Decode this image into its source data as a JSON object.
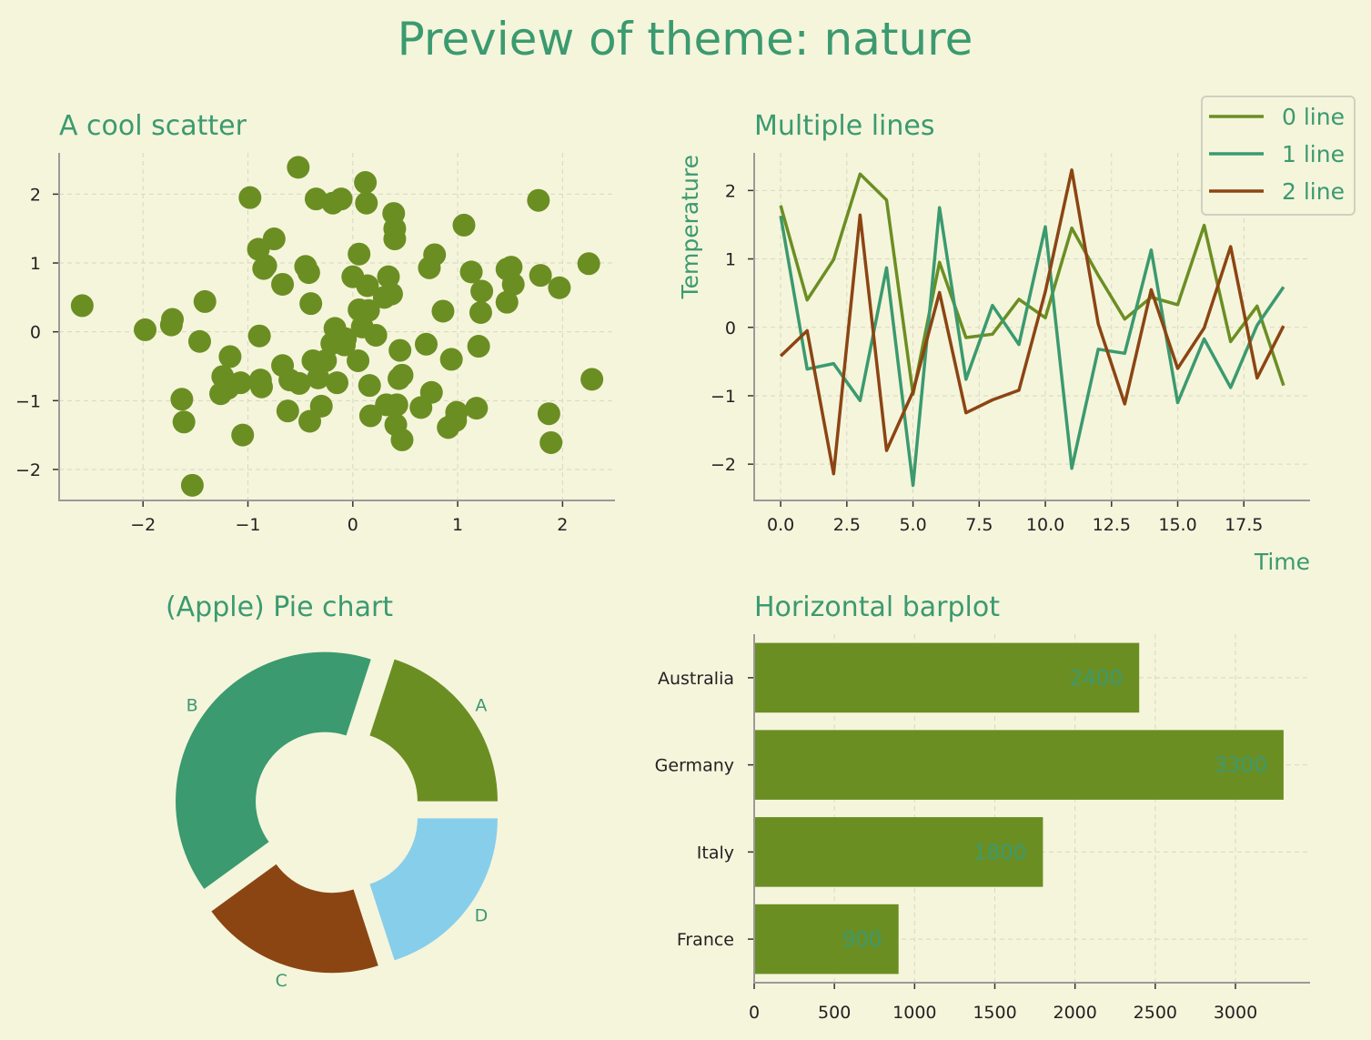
{
  "page": {
    "suptitle": "Preview of theme: nature"
  },
  "colors": {
    "background": "#f5f5dc",
    "text": "#3b9a6f",
    "olive": "#6b8e23",
    "green": "#3b9a6f",
    "brown": "#8b4513",
    "lightblue": "#87ceeb"
  },
  "chart_data": [
    {
      "id": "scatter",
      "type": "scatter",
      "title": "A cool scatter",
      "xlabel": "",
      "ylabel": "",
      "xlim": [
        -2.8,
        2.5
      ],
      "ylim": [
        -2.45,
        2.6
      ],
      "xticks": [
        -2,
        -1,
        0,
        1,
        2
      ],
      "xtick_labels": [
        "−2",
        "−1",
        "0",
        "1",
        "2"
      ],
      "yticks": [
        -2,
        -1,
        0,
        1,
        2
      ],
      "ytick_labels": [
        "−2",
        "−1",
        "0",
        "1",
        "2"
      ],
      "grid": true,
      "color": "#6b8e23",
      "points": [
        [
          -2.58,
          0.38
        ],
        [
          -1.98,
          0.03
        ],
        [
          -1.72,
          0.18
        ],
        [
          -1.73,
          0.1
        ],
        [
          -1.63,
          -0.98
        ],
        [
          -1.61,
          -1.31
        ],
        [
          -1.53,
          -2.23
        ],
        [
          -1.46,
          -0.14
        ],
        [
          -1.41,
          0.44
        ],
        [
          -1.26,
          -0.9
        ],
        [
          -1.24,
          -0.65
        ],
        [
          -1.17,
          -0.36
        ],
        [
          -1.19,
          -0.82
        ],
        [
          -1.07,
          -0.74
        ],
        [
          -1.05,
          -1.5
        ],
        [
          -0.98,
          1.95
        ],
        [
          -0.9,
          1.2
        ],
        [
          -0.89,
          -0.06
        ],
        [
          -0.88,
          -0.7
        ],
        [
          -0.87,
          -0.8
        ],
        [
          -0.83,
          0.96
        ],
        [
          -0.85,
          0.92
        ],
        [
          -0.75,
          1.35
        ],
        [
          -0.67,
          0.69
        ],
        [
          -0.67,
          -0.49
        ],
        [
          -0.62,
          -1.15
        ],
        [
          -0.6,
          -0.7
        ],
        [
          -0.52,
          2.39
        ],
        [
          -0.51,
          -0.75
        ],
        [
          -0.45,
          0.95
        ],
        [
          -0.42,
          0.86
        ],
        [
          -0.4,
          0.41
        ],
        [
          -0.41,
          -1.3
        ],
        [
          -0.38,
          -0.42
        ],
        [
          -0.35,
          1.93
        ],
        [
          -0.33,
          -0.67
        ],
        [
          -0.3,
          -1.08
        ],
        [
          -0.26,
          -0.42
        ],
        [
          -0.2,
          -0.17
        ],
        [
          -0.19,
          1.87
        ],
        [
          -0.17,
          0.05
        ],
        [
          -0.15,
          -0.74
        ],
        [
          -0.11,
          1.93
        ],
        [
          -0.08,
          -0.19
        ],
        [
          -0.07,
          -0.1
        ],
        [
          0.0,
          0.8
        ],
        [
          0.05,
          -0.42
        ],
        [
          0.06,
          1.13
        ],
        [
          0.06,
          0.32
        ],
        [
          0.09,
          0.07
        ],
        [
          0.12,
          2.17
        ],
        [
          0.13,
          1.87
        ],
        [
          0.14,
          0.67
        ],
        [
          0.15,
          0.31
        ],
        [
          0.16,
          -0.78
        ],
        [
          0.17,
          -1.22
        ],
        [
          0.22,
          -0.05
        ],
        [
          0.3,
          0.5
        ],
        [
          0.32,
          -1.06
        ],
        [
          0.34,
          0.8
        ],
        [
          0.37,
          0.55
        ],
        [
          0.39,
          1.72
        ],
        [
          0.4,
          1.5
        ],
        [
          0.4,
          1.35
        ],
        [
          0.41,
          -1.35
        ],
        [
          0.42,
          -1.06
        ],
        [
          0.44,
          -0.68
        ],
        [
          0.45,
          -0.27
        ],
        [
          0.47,
          -0.63
        ],
        [
          0.47,
          -1.57
        ],
        [
          0.65,
          -1.1
        ],
        [
          0.7,
          -0.18
        ],
        [
          0.73,
          0.93
        ],
        [
          0.75,
          -0.88
        ],
        [
          0.78,
          1.12
        ],
        [
          0.86,
          0.3
        ],
        [
          0.91,
          -1.39
        ],
        [
          0.94,
          -0.4
        ],
        [
          0.98,
          -1.29
        ],
        [
          0.99,
          -1.17
        ],
        [
          1.06,
          1.55
        ],
        [
          1.13,
          0.87
        ],
        [
          1.18,
          -1.11
        ],
        [
          1.2,
          -0.21
        ],
        [
          1.23,
          0.59
        ],
        [
          1.22,
          0.28
        ],
        [
          1.47,
          0.91
        ],
        [
          1.47,
          0.43
        ],
        [
          1.51,
          0.94
        ],
        [
          1.53,
          0.69
        ],
        [
          1.77,
          1.91
        ],
        [
          1.79,
          0.82
        ],
        [
          1.87,
          -1.19
        ],
        [
          1.89,
          -1.61
        ],
        [
          1.97,
          0.64
        ],
        [
          2.25,
          0.99
        ],
        [
          2.28,
          -0.69
        ]
      ]
    },
    {
      "id": "lines",
      "type": "line",
      "title": "Multiple lines",
      "xlabel": "Time",
      "ylabel": "Temperature",
      "xlim": [
        -1.0,
        20.0
      ],
      "ylim": [
        -2.53,
        2.55
      ],
      "xticks": [
        0,
        2.5,
        5,
        7.5,
        10,
        12.5,
        15,
        17.5
      ],
      "xtick_labels": [
        "0.0",
        "2.5",
        "5.0",
        "7.5",
        "10.0",
        "12.5",
        "15.0",
        "17.5"
      ],
      "yticks": [
        -2,
        -1,
        0,
        1,
        2
      ],
      "ytick_labels": [
        "−2",
        "−1",
        "0",
        "1",
        "2"
      ],
      "grid": true,
      "legend_position": "top-right",
      "x": [
        0,
        1,
        2,
        3,
        4,
        5,
        6,
        7,
        8,
        9,
        10,
        11,
        12,
        13,
        14,
        15,
        16,
        17,
        18,
        19
      ],
      "series": [
        {
          "name": "0 line",
          "color": "#6b8e23",
          "values": [
            1.78,
            0.4,
            0.99,
            2.24,
            1.86,
            -0.98,
            0.95,
            -0.15,
            -0.1,
            0.41,
            0.14,
            1.45,
            0.76,
            0.12,
            0.44,
            0.33,
            1.49,
            -0.21,
            0.31,
            -0.85
          ]
        },
        {
          "name": "1 line",
          "color": "#3b9a6f",
          "values": [
            1.63,
            -0.61,
            -0.53,
            -1.07,
            0.87,
            -2.31,
            1.75,
            -0.76,
            0.32,
            -0.25,
            1.47,
            -2.06,
            -0.32,
            -0.38,
            1.13,
            -1.1,
            -0.17,
            -0.88,
            0.03,
            0.59
          ]
        },
        {
          "name": "2 line",
          "color": "#8b4513",
          "values": [
            -0.42,
            -0.05,
            -2.14,
            1.64,
            -1.8,
            -0.94,
            0.51,
            -1.25,
            -1.06,
            -0.92,
            0.52,
            2.3,
            0.05,
            -1.12,
            0.55,
            -0.6,
            -0.01,
            1.18,
            -0.74,
            0.02
          ]
        }
      ]
    },
    {
      "id": "pie",
      "type": "pie",
      "title": "(Apple) Pie chart",
      "labels": [
        "A",
        "B",
        "C",
        "D"
      ],
      "values": [
        20,
        40,
        20,
        20
      ],
      "colors": [
        "#6b8e23",
        "#3b9a6f",
        "#8b4513",
        "#87ceeb"
      ],
      "donut": true,
      "exploded": true
    },
    {
      "id": "barh",
      "type": "bar",
      "orientation": "horizontal",
      "title": "Horizontal barplot",
      "categories": [
        "Australia",
        "Germany",
        "Italy",
        "France"
      ],
      "values": [
        2400,
        3300,
        1800,
        900
      ],
      "value_labels": [
        "2400",
        "3300",
        "1800",
        "900"
      ],
      "xlim": [
        0,
        3465
      ],
      "xticks": [
        0,
        500,
        1000,
        1500,
        2000,
        2500,
        3000
      ],
      "xtick_labels": [
        "0",
        "500",
        "1000",
        "1500",
        "2000",
        "2500",
        "3000"
      ],
      "grid": true,
      "color": "#6b8e23"
    }
  ]
}
